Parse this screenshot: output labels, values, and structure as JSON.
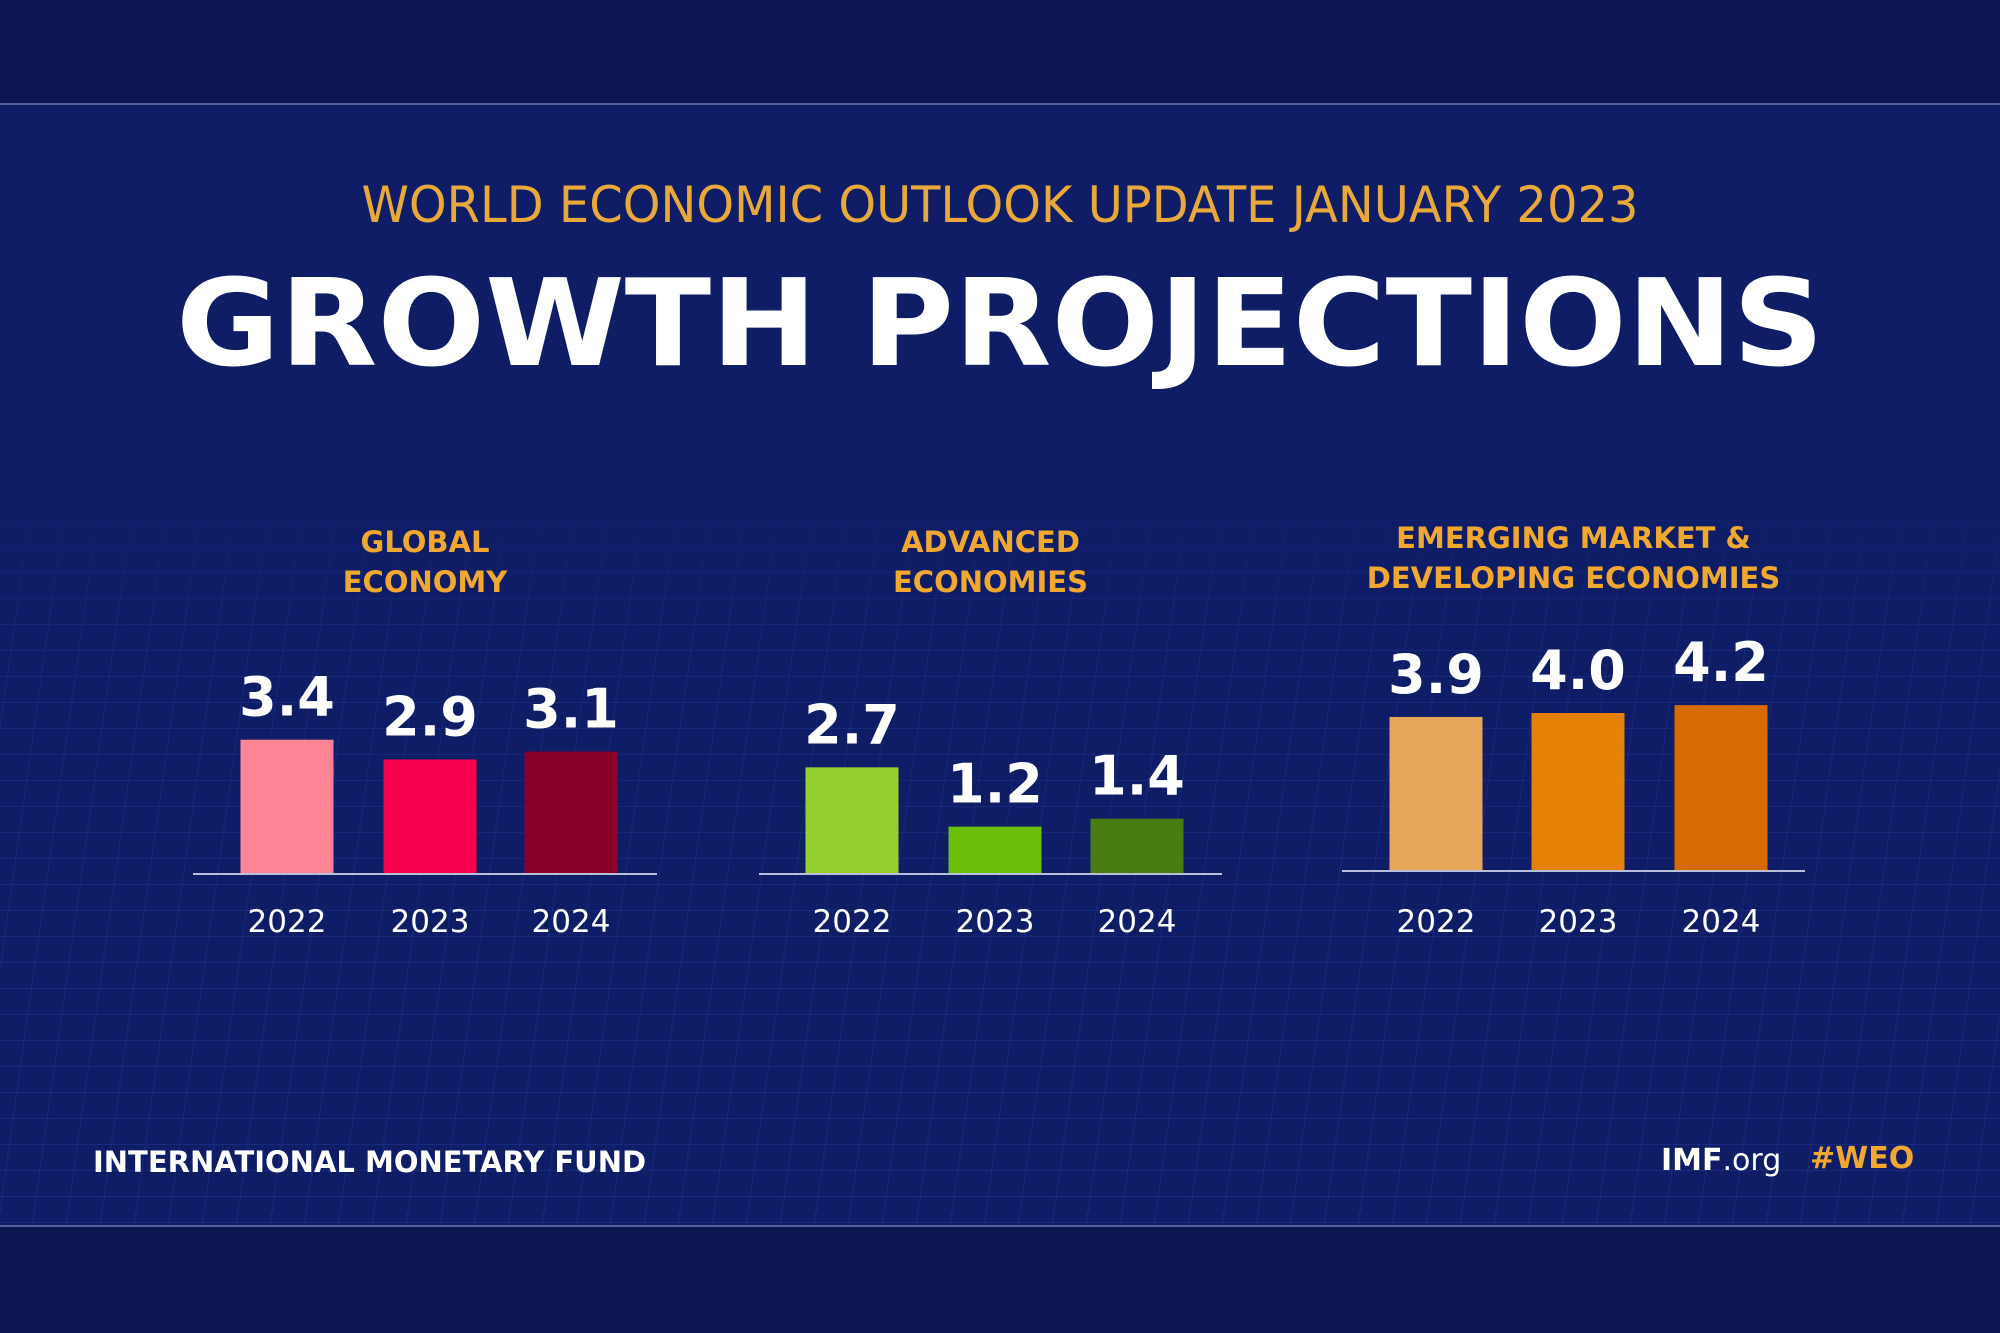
{
  "header": {
    "subtitle": "WORLD ECONOMIC OUTLOOK UPDATE JANUARY 2023",
    "title": "GROWTH PROJECTIONS"
  },
  "chart_data": [
    {
      "type": "bar",
      "title": [
        "GLOBAL",
        "ECONOMY"
      ],
      "categories": [
        "2022",
        "2023",
        "2024"
      ],
      "values": [
        3.4,
        2.9,
        3.1
      ],
      "value_labels": [
        "3.4",
        "2.9",
        "3.1"
      ],
      "colors": [
        "#fb8595",
        "#f7004d",
        "#8a0029"
      ]
    },
    {
      "type": "bar",
      "title": [
        "ADVANCED",
        "ECONOMIES"
      ],
      "categories": [
        "2022",
        "2023",
        "2024"
      ],
      "values": [
        2.7,
        1.2,
        1.4
      ],
      "value_labels": [
        "2.7",
        "1.2",
        "1.4"
      ],
      "colors": [
        "#95cf2f",
        "#6abf0a",
        "#4a7d0f"
      ]
    },
    {
      "type": "bar",
      "title": [
        "EMERGING MARKET &",
        "DEVELOPING ECONOMIES"
      ],
      "categories": [
        "2022",
        "2023",
        "2024"
      ],
      "values": [
        3.9,
        4.0,
        4.2
      ],
      "value_labels": [
        "3.9",
        "4.0",
        "4.2"
      ],
      "colors": [
        "#e8a65b",
        "#e58106",
        "#d56b02"
      ]
    }
  ],
  "footer": {
    "organization": "INTERNATIONAL MONETARY FUND",
    "site": "IMF",
    "site_suffix": ".org",
    "hashtag": "#WEO"
  }
}
